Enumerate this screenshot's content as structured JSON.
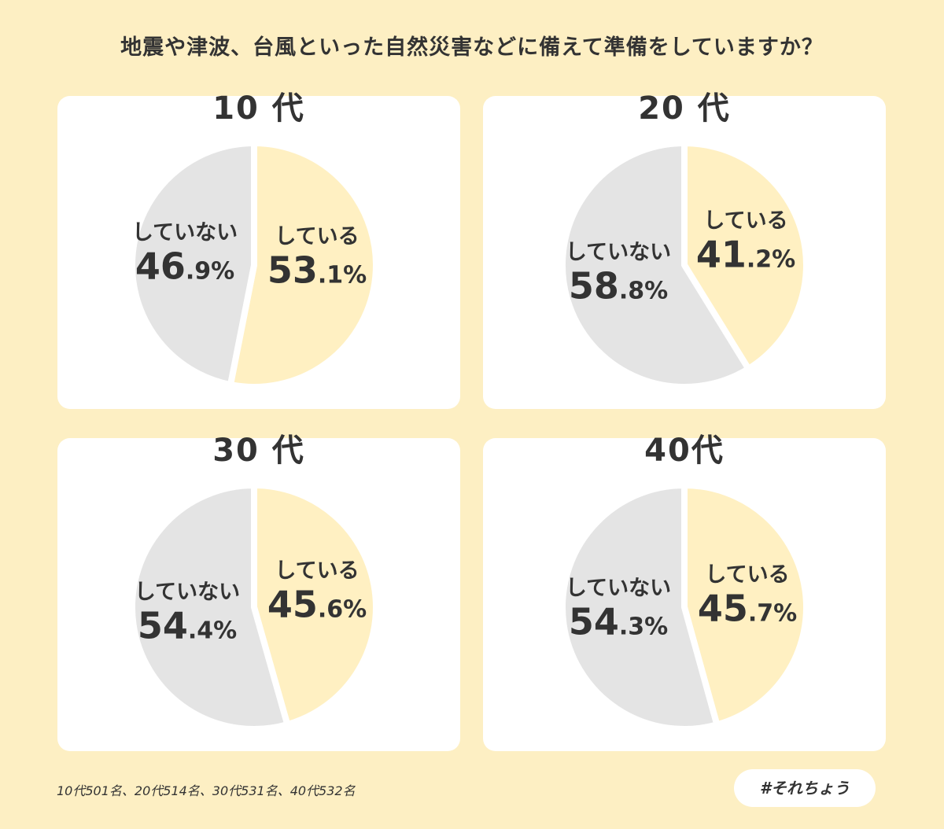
{
  "title": "地震や津波、台風といった自然災害などに備えて準備をしていますか？",
  "footnote": "10代501名、20代514名、30代531名、40代532名",
  "hashtag": "#それちょう",
  "colors": {
    "background": "#fdefc3",
    "card": "#ffffff",
    "prepared": "#fff0c2",
    "not_prepared": "#e4e4e4",
    "text": "#333333"
  },
  "chart_data": [
    {
      "type": "pie",
      "title": "10 代",
      "slices": [
        {
          "label": "している",
          "value": 53.1,
          "int": "53",
          "dec": ".1%"
        },
        {
          "label": "していない",
          "value": 46.9,
          "int": "46",
          "dec": ".9%"
        }
      ]
    },
    {
      "type": "pie",
      "title": "20 代",
      "slices": [
        {
          "label": "している",
          "value": 41.2,
          "int": "41",
          "dec": ".2%"
        },
        {
          "label": "していない",
          "value": 58.8,
          "int": "58",
          "dec": ".8%"
        }
      ]
    },
    {
      "type": "pie",
      "title": "30 代",
      "slices": [
        {
          "label": "している",
          "value": 45.6,
          "int": "45",
          "dec": ".6%"
        },
        {
          "label": "していない",
          "value": 54.4,
          "int": "54",
          "dec": ".4%"
        }
      ]
    },
    {
      "type": "pie",
      "title": "40代",
      "slices": [
        {
          "label": "している",
          "value": 45.7,
          "int": "45",
          "dec": ".7%"
        },
        {
          "label": "していない",
          "value": 54.3,
          "int": "54",
          "dec": ".3%"
        }
      ]
    }
  ]
}
